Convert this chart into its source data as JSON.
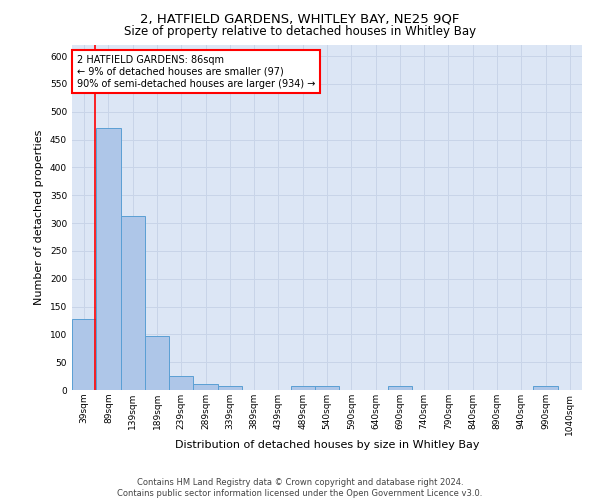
{
  "title": "2, HATFIELD GARDENS, WHITLEY BAY, NE25 9QF",
  "subtitle": "Size of property relative to detached houses in Whitley Bay",
  "xlabel": "Distribution of detached houses by size in Whitley Bay",
  "ylabel": "Number of detached properties",
  "bar_labels": [
    "39sqm",
    "89sqm",
    "139sqm",
    "189sqm",
    "239sqm",
    "289sqm",
    "339sqm",
    "389sqm",
    "439sqm",
    "489sqm",
    "540sqm",
    "590sqm",
    "640sqm",
    "690sqm",
    "740sqm",
    "790sqm",
    "840sqm",
    "890sqm",
    "940sqm",
    "990sqm",
    "1040sqm"
  ],
  "bar_values": [
    128,
    471,
    312,
    97,
    25,
    11,
    7,
    0,
    0,
    7,
    7,
    0,
    0,
    7,
    0,
    0,
    0,
    0,
    0,
    7,
    0
  ],
  "bar_color": "#aec6e8",
  "bar_edge_color": "#5a9fd4",
  "grid_color": "#c8d4e8",
  "background_color": "#dce6f5",
  "annotation_text": "2 HATFIELD GARDENS: 86sqm\n← 9% of detached houses are smaller (97)\n90% of semi-detached houses are larger (934) →",
  "annotation_box_color": "white",
  "annotation_box_edge_color": "red",
  "marker_line_color": "red",
  "ylim": [
    0,
    620
  ],
  "yticks": [
    0,
    50,
    100,
    150,
    200,
    250,
    300,
    350,
    400,
    450,
    500,
    550,
    600
  ],
  "footer_text": "Contains HM Land Registry data © Crown copyright and database right 2024.\nContains public sector information licensed under the Open Government Licence v3.0.",
  "title_fontsize": 9.5,
  "subtitle_fontsize": 8.5,
  "ylabel_fontsize": 8,
  "xlabel_fontsize": 8,
  "footer_fontsize": 6,
  "annotation_fontsize": 7,
  "tick_fontsize": 6.5
}
